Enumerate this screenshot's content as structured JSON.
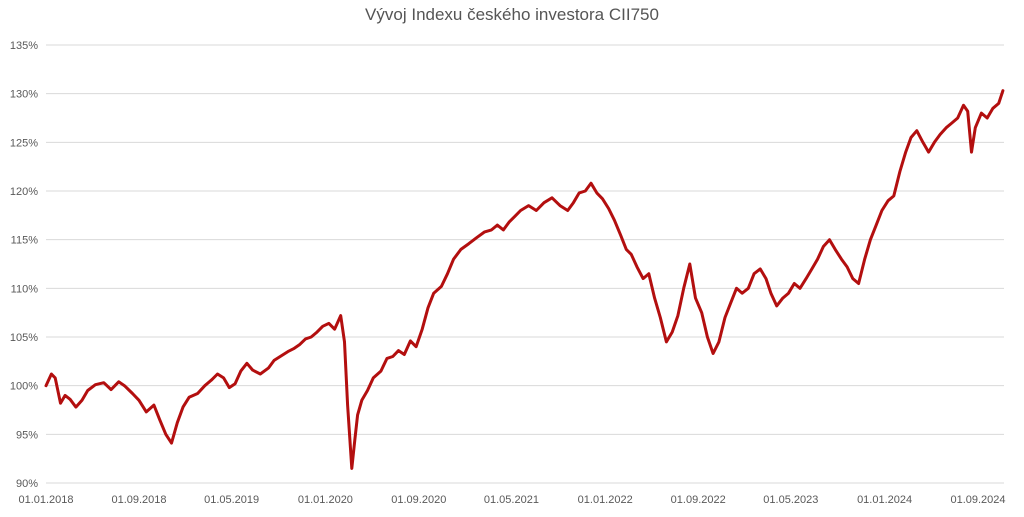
{
  "chart_data": {
    "type": "line",
    "title": "Vývoj Indexu českého investora CII750",
    "xlabel": "",
    "ylabel": "",
    "ylim": [
      90,
      135
    ],
    "grid": "horizontal",
    "legend": "none",
    "line_color": "#b30f0f",
    "y_ticks": [
      {
        "value": 90,
        "label": "90%"
      },
      {
        "value": 95,
        "label": "95%"
      },
      {
        "value": 100,
        "label": "100%"
      },
      {
        "value": 105,
        "label": "105%"
      },
      {
        "value": 110,
        "label": "110%"
      },
      {
        "value": 115,
        "label": "115%"
      },
      {
        "value": 120,
        "label": "120%"
      },
      {
        "value": 125,
        "label": "125%"
      },
      {
        "value": 130,
        "label": "130%"
      },
      {
        "value": 135,
        "label": "135%"
      }
    ],
    "x_ticks": [
      {
        "date": "2018-01-01",
        "label": "01.01.2018"
      },
      {
        "date": "2018-09-01",
        "label": "01.09.2018"
      },
      {
        "date": "2019-05-01",
        "label": "01.05.2019"
      },
      {
        "date": "2020-01-01",
        "label": "01.01.2020"
      },
      {
        "date": "2020-09-01",
        "label": "01.09.2020"
      },
      {
        "date": "2021-05-01",
        "label": "01.05.2021"
      },
      {
        "date": "2022-01-01",
        "label": "01.01.2022"
      },
      {
        "date": "2022-09-01",
        "label": "01.09.2022"
      },
      {
        "date": "2023-05-01",
        "label": "01.05.2023"
      },
      {
        "date": "2024-01-01",
        "label": "01.01.2024"
      },
      {
        "date": "2024-09-01",
        "label": "01.09.2024"
      }
    ],
    "series": [
      {
        "x": [
          "2018-01-01",
          "2018-01-15",
          "2018-01-25",
          "2018-02-08",
          "2018-02-20",
          "2018-03-05",
          "2018-03-20",
          "2018-04-05",
          "2018-04-20",
          "2018-05-10",
          "2018-06-01",
          "2018-06-20",
          "2018-07-10",
          "2018-07-25",
          "2018-08-15",
          "2018-09-01",
          "2018-09-20",
          "2018-10-10",
          "2018-10-25",
          "2018-11-10",
          "2018-11-25",
          "2018-12-10",
          "2018-12-25",
          "2019-01-10",
          "2019-02-01",
          "2019-02-20",
          "2019-03-10",
          "2019-03-25",
          "2019-04-10",
          "2019-04-25",
          "2019-05-10",
          "2019-05-25",
          "2019-06-10",
          "2019-06-25",
          "2019-07-15",
          "2019-08-05",
          "2019-08-20",
          "2019-09-05",
          "2019-09-25",
          "2019-10-10",
          "2019-10-25",
          "2019-11-10",
          "2019-11-25",
          "2019-12-10",
          "2019-12-25",
          "2020-01-10",
          "2020-01-25",
          "2020-02-10",
          "2020-02-20",
          "2020-02-28",
          "2020-03-10",
          "2020-03-18",
          "2020-03-25",
          "2020-04-05",
          "2020-04-20",
          "2020-05-05",
          "2020-05-25",
          "2020-06-10",
          "2020-06-25",
          "2020-07-10",
          "2020-07-25",
          "2020-08-10",
          "2020-08-25",
          "2020-09-10",
          "2020-09-25",
          "2020-10-10",
          "2020-10-30",
          "2020-11-15",
          "2020-12-01",
          "2020-12-20",
          "2021-01-10",
          "2021-01-30",
          "2021-02-20",
          "2021-03-10",
          "2021-03-25",
          "2021-04-10",
          "2021-04-25",
          "2021-05-10",
          "2021-05-25",
          "2021-06-15",
          "2021-07-05",
          "2021-07-25",
          "2021-08-15",
          "2021-09-05",
          "2021-09-25",
          "2021-10-10",
          "2021-10-25",
          "2021-11-10",
          "2021-11-25",
          "2021-12-10",
          "2021-12-25",
          "2022-01-10",
          "2022-01-25",
          "2022-02-10",
          "2022-02-25",
          "2022-03-10",
          "2022-03-25",
          "2022-04-10",
          "2022-04-25",
          "2022-05-10",
          "2022-05-25",
          "2022-06-10",
          "2022-06-25",
          "2022-07-10",
          "2022-07-25",
          "2022-08-10",
          "2022-08-25",
          "2022-09-10",
          "2022-09-25",
          "2022-10-10",
          "2022-10-25",
          "2022-11-10",
          "2022-11-25",
          "2022-12-10",
          "2022-12-25",
          "2023-01-10",
          "2023-01-25",
          "2023-02-10",
          "2023-02-25",
          "2023-03-10",
          "2023-03-25",
          "2023-04-10",
          "2023-04-25",
          "2023-05-10",
          "2023-05-25",
          "2023-06-10",
          "2023-06-25",
          "2023-07-10",
          "2023-07-25",
          "2023-08-10",
          "2023-08-25",
          "2023-09-10",
          "2023-09-25",
          "2023-10-10",
          "2023-10-25",
          "2023-11-10",
          "2023-11-25",
          "2023-12-10",
          "2023-12-25",
          "2024-01-10",
          "2024-01-25",
          "2024-02-10",
          "2024-02-25",
          "2024-03-10",
          "2024-03-25",
          "2024-04-10",
          "2024-04-25",
          "2024-05-10",
          "2024-05-25",
          "2024-06-10",
          "2024-06-25",
          "2024-07-10",
          "2024-07-25",
          "2024-08-05",
          "2024-08-15",
          "2024-08-25",
          "2024-09-10",
          "2024-09-25",
          "2024-10-10",
          "2024-10-25",
          "2024-11-05"
        ],
        "values": [
          100.0,
          101.2,
          100.8,
          98.2,
          99.0,
          98.6,
          97.8,
          98.5,
          99.5,
          100.1,
          100.3,
          99.6,
          100.4,
          100.0,
          99.2,
          98.5,
          97.3,
          98.0,
          96.5,
          95.0,
          94.1,
          96.2,
          97.8,
          98.8,
          99.2,
          100.0,
          100.6,
          101.2,
          100.8,
          99.8,
          100.2,
          101.5,
          102.3,
          101.6,
          101.2,
          101.8,
          102.6,
          103.0,
          103.5,
          103.8,
          104.2,
          104.8,
          105.0,
          105.5,
          106.1,
          106.4,
          105.8,
          107.2,
          104.5,
          98.0,
          91.5,
          94.5,
          97.0,
          98.5,
          99.5,
          100.8,
          101.5,
          102.8,
          103.0,
          103.6,
          103.2,
          104.6,
          104.0,
          105.8,
          108.0,
          109.5,
          110.2,
          111.5,
          113.0,
          114.0,
          114.6,
          115.2,
          115.8,
          116.0,
          116.5,
          116.0,
          116.8,
          117.4,
          118.0,
          118.5,
          118.0,
          118.8,
          119.3,
          118.5,
          118.0,
          118.8,
          119.8,
          120.0,
          120.8,
          119.8,
          119.2,
          118.2,
          117.0,
          115.5,
          114.0,
          113.5,
          112.2,
          111.0,
          111.5,
          109.0,
          107.0,
          104.5,
          105.5,
          107.2,
          110.0,
          112.5,
          109.0,
          107.5,
          105.0,
          103.3,
          104.5,
          107.0,
          108.5,
          110.0,
          109.5,
          110.0,
          111.5,
          112.0,
          111.0,
          109.5,
          108.2,
          109.0,
          109.5,
          110.5,
          110.0,
          111.0,
          112.0,
          113.0,
          114.3,
          115.0,
          114.0,
          113.0,
          112.2,
          111.0,
          110.5,
          113.0,
          115.0,
          116.5,
          118.0,
          119.0,
          119.5,
          122.0,
          124.0,
          125.5,
          126.2,
          125.0,
          124.0,
          125.0,
          125.8,
          126.5,
          127.0,
          127.5,
          128.8,
          128.2,
          124.0,
          126.5,
          128.0,
          127.5,
          128.5,
          129.0,
          130.3
        ]
      }
    ]
  }
}
